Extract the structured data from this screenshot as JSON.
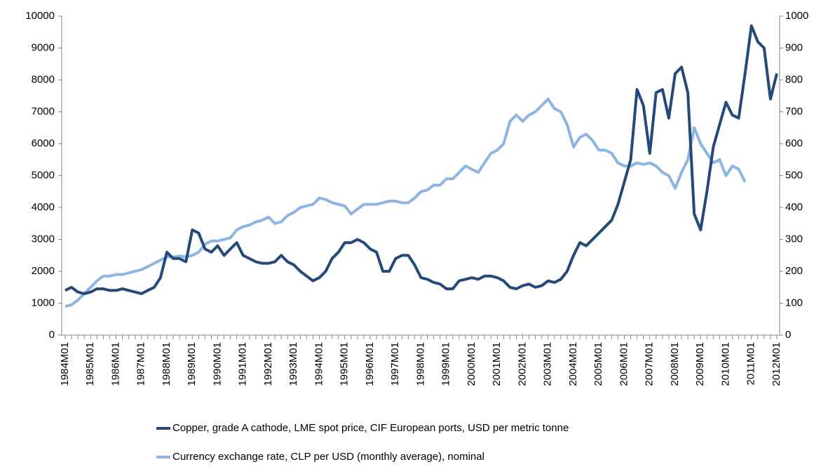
{
  "chart_data": {
    "type": "line",
    "categories": [
      "1984M01",
      null,
      null,
      null,
      "1985M01",
      null,
      null,
      null,
      "1986M01",
      null,
      null,
      null,
      "1987M01",
      null,
      null,
      null,
      "1988M01",
      null,
      null,
      null,
      "1989M01",
      null,
      null,
      null,
      "1990M01",
      null,
      null,
      null,
      "1991M01",
      null,
      null,
      null,
      "1992M01",
      null,
      null,
      null,
      "1993M01",
      null,
      null,
      null,
      "1994M01",
      null,
      null,
      null,
      "1995M01",
      null,
      null,
      null,
      "1996M01",
      null,
      null,
      null,
      "1997M01",
      null,
      null,
      null,
      "1998M01",
      null,
      null,
      null,
      "1999M01",
      null,
      null,
      null,
      "2000M01",
      null,
      null,
      null,
      "2001M01",
      null,
      null,
      null,
      "2002M01",
      null,
      null,
      null,
      "2003M01",
      null,
      null,
      null,
      "2004M01",
      null,
      null,
      null,
      "2005M01",
      null,
      null,
      null,
      "2006M01",
      null,
      null,
      null,
      "2007M01",
      null,
      null,
      null,
      "2008M01",
      null,
      null,
      null,
      "2009M01",
      null,
      null,
      null,
      "2010M01",
      null,
      null,
      null,
      "2011M01",
      null,
      null,
      null,
      "2012M01"
    ],
    "series": [
      {
        "name": "Copper, grade A cathode, LME spot price, CIF European ports, USD per metric tonne",
        "color": "#254a7a",
        "axis": "y",
        "values": [
          1400,
          1500,
          1350,
          1300,
          1350,
          1450,
          1450,
          1400,
          1400,
          1450,
          1400,
          1350,
          1300,
          1400,
          1500,
          1800,
          2600,
          2400,
          2400,
          2300,
          3300,
          3200,
          2700,
          2600,
          2800,
          2500,
          2700,
          2900,
          2500,
          2400,
          2300,
          2250,
          2250,
          2300,
          2500,
          2300,
          2200,
          2000,
          1850,
          1700,
          1800,
          2000,
          2400,
          2600,
          2900,
          2900,
          3000,
          2900,
          2700,
          2600,
          2000,
          2000,
          2400,
          2500,
          2500,
          2200,
          1800,
          1750,
          1650,
          1600,
          1450,
          1450,
          1700,
          1750,
          1800,
          1750,
          1850,
          1850,
          1800,
          1700,
          1500,
          1450,
          1550,
          1600,
          1500,
          1550,
          1700,
          1650,
          1750,
          2000,
          2500,
          2900,
          2800,
          3000,
          3200,
          3400,
          3600,
          4100,
          4800,
          5500,
          7700,
          7200,
          5700,
          7600,
          7700,
          6800,
          8200,
          8400,
          7600,
          3800,
          3300,
          4500,
          5900,
          6600,
          7300,
          6900,
          6800,
          8200,
          9700,
          9200,
          9000,
          7400,
          8200
        ]
      },
      {
        "name": "Currency exchange rate, CLP per USD (monthly average), nominal",
        "color": "#8db4e2",
        "axis": "y2",
        "values": [
          90,
          95,
          110,
          130,
          150,
          170,
          185,
          185,
          190,
          190,
          195,
          200,
          205,
          215,
          225,
          235,
          245,
          245,
          248,
          245,
          250,
          260,
          285,
          295,
          295,
          300,
          305,
          330,
          340,
          345,
          355,
          360,
          370,
          350,
          355,
          375,
          385,
          400,
          405,
          410,
          430,
          425,
          415,
          410,
          405,
          380,
          395,
          410,
          410,
          410,
          415,
          420,
          420,
          415,
          415,
          430,
          450,
          455,
          470,
          470,
          490,
          490,
          510,
          530,
          520,
          510,
          540,
          570,
          580,
          600,
          670,
          690,
          670,
          690,
          700,
          720,
          740,
          710,
          700,
          660,
          590,
          620,
          630,
          610,
          580,
          580,
          570,
          540,
          530,
          530,
          540,
          535,
          540,
          530,
          510,
          500,
          460,
          510,
          550,
          650,
          600,
          570,
          540,
          550,
          500,
          530,
          520,
          480,
          null,
          null,
          null,
          null,
          null
        ]
      }
    ],
    "ylim": [
      0,
      10000
    ],
    "yticks": [
      0,
      1000,
      2000,
      3000,
      4000,
      5000,
      6000,
      7000,
      8000,
      9000,
      10000
    ],
    "y2lim": [
      0,
      1000
    ],
    "y2ticks": [
      0,
      100,
      200,
      300,
      400,
      500,
      600,
      700,
      800,
      900,
      1000
    ],
    "grid": false
  }
}
